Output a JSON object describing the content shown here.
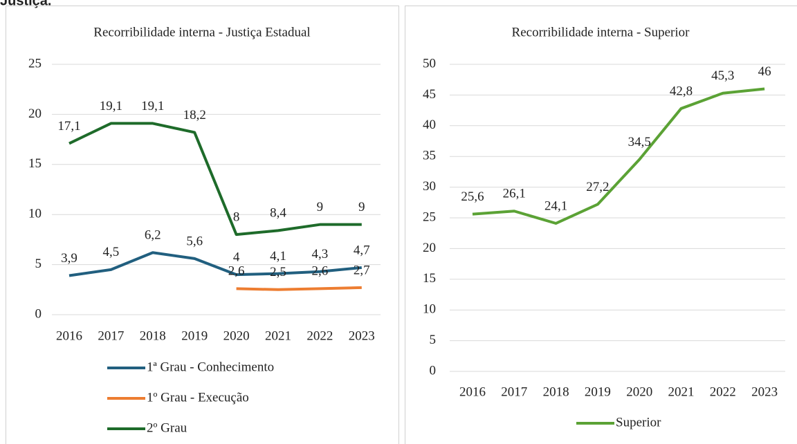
{
  "header": "Justiça.",
  "chart_data": [
    {
      "type": "line",
      "title": "Recorribilidade interna - Justiça Estadual",
      "categories": [
        "2016",
        "2017",
        "2018",
        "2019",
        "2020",
        "2021",
        "2022",
        "2023"
      ],
      "ylim": [
        0,
        25
      ],
      "yticks": [
        0,
        5,
        10,
        15,
        20,
        25
      ],
      "grid": true,
      "legend": "bottom",
      "series": [
        {
          "name": "1ª Grau - Conhecimento",
          "color": "#215f7f",
          "values": [
            3.9,
            4.5,
            6.2,
            5.6,
            4,
            4.1,
            4.3,
            4.7
          ],
          "value_labels": [
            "3,9",
            "4,5",
            "6,2",
            "5,6",
            "4",
            "4,1",
            "4,3",
            "4,7"
          ]
        },
        {
          "name": "1º Grau - Execução",
          "color": "#ed7d31",
          "values": [
            null,
            null,
            null,
            null,
            2.6,
            2.5,
            2.6,
            2.7
          ],
          "value_labels": [
            null,
            null,
            null,
            null,
            "2,6",
            "2,5",
            "2,6",
            "2,7"
          ]
        },
        {
          "name": "2º Grau",
          "color": "#1e6b2a",
          "values": [
            17.1,
            19.1,
            19.1,
            18.2,
            8,
            8.4,
            9,
            9
          ],
          "value_labels": [
            "17,1",
            "19,1",
            "19,1",
            "18,2",
            "8",
            "8,4",
            "9",
            "9"
          ]
        }
      ]
    },
    {
      "type": "line",
      "title": "Recorribilidade interna - Superior",
      "categories": [
        "2016",
        "2017",
        "2018",
        "2019",
        "2020",
        "2021",
        "2022",
        "2023"
      ],
      "ylim": [
        0,
        50
      ],
      "yticks": [
        0,
        5,
        10,
        15,
        20,
        25,
        30,
        35,
        40,
        45,
        50
      ],
      "grid": true,
      "legend": "bottom",
      "series": [
        {
          "name": "Superior",
          "color": "#5ba235",
          "values": [
            25.6,
            26.1,
            24.1,
            27.2,
            34.5,
            42.8,
            45.3,
            46
          ],
          "value_labels": [
            "25,6",
            "26,1",
            "24,1",
            "27,2",
            "34,5",
            "42,8",
            "45,3",
            "46"
          ]
        }
      ]
    }
  ]
}
